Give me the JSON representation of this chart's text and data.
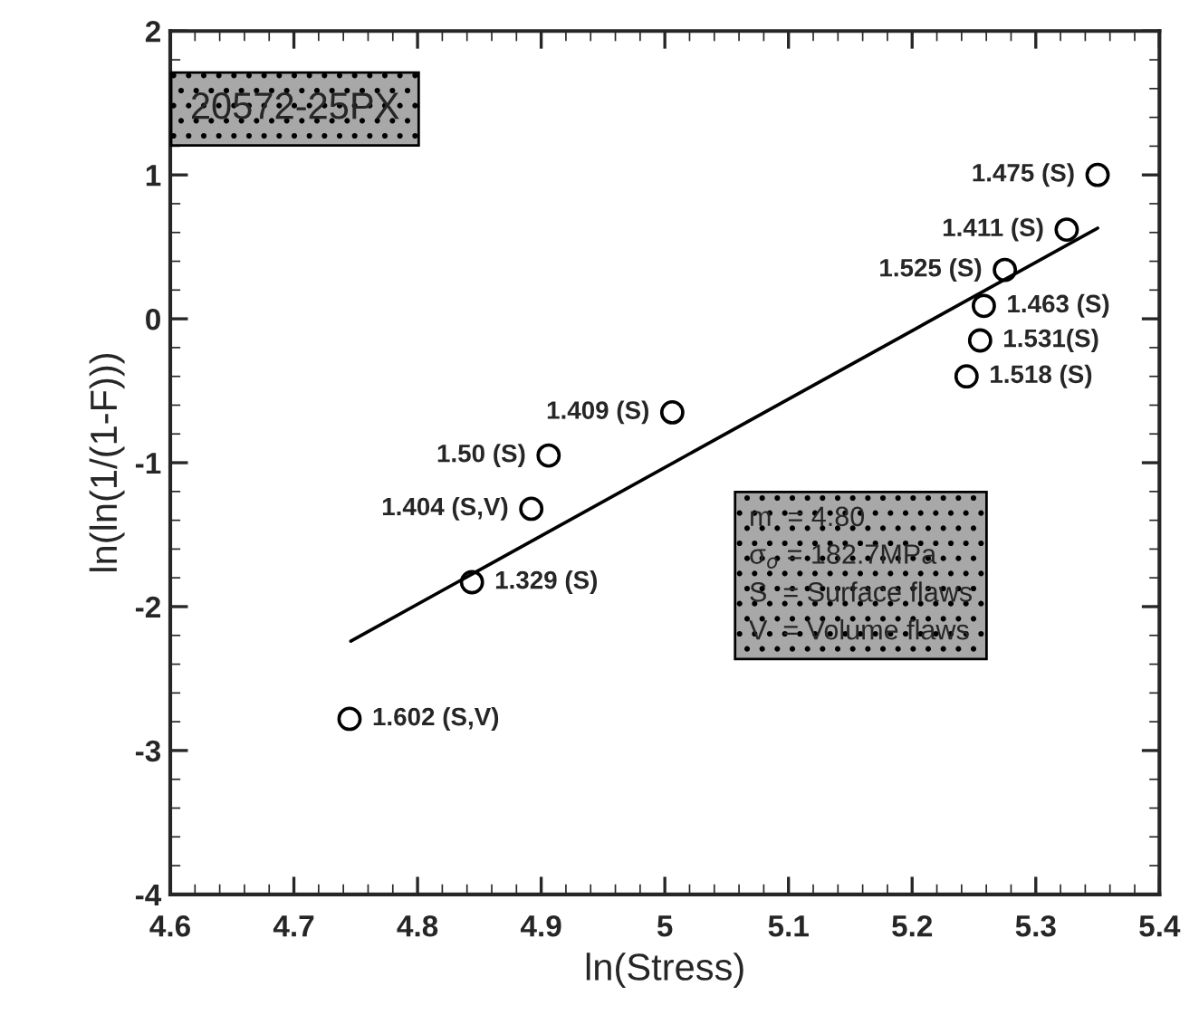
{
  "chart_data": {
    "type": "scatter",
    "xlabel": "ln(Stress)",
    "ylabel": "ln(ln(1/(1-F)))",
    "xlim": [
      4.6,
      5.4
    ],
    "xticks": [
      4.6,
      4.7,
      4.8,
      4.9,
      5,
      5.1,
      5.2,
      5.3,
      5.4
    ],
    "ylim": [
      -4,
      2
    ],
    "yticks": [
      -4,
      -3,
      -2,
      -1,
      0,
      1,
      2
    ],
    "grid": false,
    "legend": false,
    "series": [
      {
        "marker": "circle",
        "color": "#000000",
        "x": [
          5.35,
          5.325,
          5.275,
          5.258,
          5.255,
          5.244,
          5.006,
          4.906,
          4.892,
          4.844,
          4.745
        ],
        "values": [
          1.0,
          0.62,
          0.34,
          0.09,
          -0.15,
          -0.4,
          -0.65,
          -0.95,
          -1.32,
          -1.83,
          -2.78
        ]
      },
      {
        "type": "line",
        "marker": "none",
        "line_style": "solid",
        "color": "#000000",
        "x": [
          4.746,
          5.35
        ],
        "values": [
          -2.24,
          0.63
        ]
      }
    ],
    "annotations": [
      {
        "text": "1.475 (S)",
        "x": 5.35,
        "y": 1.0
      },
      {
        "text": "1.411 (S)",
        "x": 5.325,
        "y": 0.62
      },
      {
        "text": "1.525 (S)",
        "x": 5.275,
        "y": 0.34
      },
      {
        "text": "1.463 (S)",
        "x": 5.258,
        "y": 0.09
      },
      {
        "text": "1.531(S)",
        "x": 5.255,
        "y": -0.15
      },
      {
        "text": "1.518 (S)",
        "x": 5.244,
        "y": -0.4
      },
      {
        "text": "1.409 (S)",
        "x": 5.006,
        "y": -0.65
      },
      {
        "text": "1.50 (S)",
        "x": 4.906,
        "y": -0.95
      },
      {
        "text": "1.404 (S,V)",
        "x": 4.892,
        "y": -1.32
      },
      {
        "text": "1.329 (S)",
        "x": 4.844,
        "y": -1.83
      },
      {
        "text": "1.602 (S,V)",
        "x": 4.745,
        "y": -2.78
      },
      "20572-25PX",
      "m  = 4.80\nσ$_{o}$ = 182.7MPa\nS  = Surface flaws\nV  = Volume flaws"
    ]
  }
}
